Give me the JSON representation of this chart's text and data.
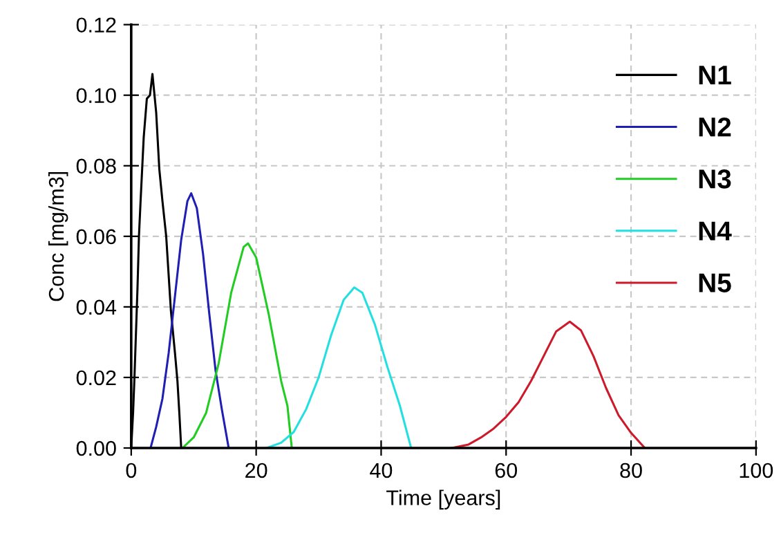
{
  "chart_data": {
    "type": "line",
    "xlabel": "Time [years]",
    "ylabel": "Conc [mg/m3]",
    "xlim": [
      0,
      100
    ],
    "xticks": [
      0,
      20,
      40,
      60,
      80,
      100
    ],
    "ylim": [
      0,
      0.12
    ],
    "yticks": [
      {
        "value": 0,
        "label": "0.00"
      },
      {
        "value": 0.02,
        "label": "0.02"
      },
      {
        "value": 0.04,
        "label": "0.04"
      },
      {
        "value": 0.06,
        "label": "0.06"
      },
      {
        "value": 0.08,
        "label": "0.08"
      },
      {
        "value": 0.1,
        "label": "0.10"
      },
      {
        "value": 0.12,
        "label": "0.12"
      }
    ],
    "grid": true,
    "legend": "right",
    "line_style": "solid",
    "marker": "none",
    "series": [
      {
        "name": "N1",
        "color": "#000000",
        "x": [
          0,
          0.3,
          0.5,
          1,
          1.24,
          1.5,
          1.75,
          2,
          2.5,
          3,
          3.4,
          4,
          4.5,
          5,
          5.6,
          6.35,
          7,
          7.4,
          7.7,
          8
        ],
        "values": [
          0,
          0.01,
          0.019,
          0.045,
          0.06,
          0.07,
          0.079,
          0.088,
          0.099,
          0.1,
          0.106,
          0.095,
          0.079,
          0.07,
          0.06,
          0.039,
          0.027,
          0.019,
          0.01,
          0
        ]
      },
      {
        "name": "N2",
        "color": "#1f1fb4",
        "x": [
          3.1,
          4,
          5,
          6,
          7,
          8,
          9,
          9.6,
          10.5,
          11.5,
          12.5,
          13.5,
          14.5,
          15.6
        ],
        "values": [
          0,
          0.006,
          0.014,
          0.027,
          0.043,
          0.059,
          0.07,
          0.0722,
          0.068,
          0.055,
          0.038,
          0.022,
          0.011,
          0
        ]
      },
      {
        "name": "N3",
        "color": "#22cc22",
        "x": [
          8.2,
          10,
          12,
          14,
          16,
          18,
          18.7,
          20,
          22,
          24,
          25,
          25.7
        ],
        "values": [
          0,
          0.003,
          0.01,
          0.024,
          0.044,
          0.057,
          0.058,
          0.054,
          0.038,
          0.019,
          0.012,
          0
        ]
      },
      {
        "name": "N4",
        "color": "#22e0e0",
        "x": [
          21.7,
          24,
          26,
          28,
          30,
          32,
          34,
          35.7,
          37,
          39,
          41,
          43,
          44.8
        ],
        "values": [
          0,
          0.0015,
          0.0045,
          0.011,
          0.02,
          0.032,
          0.042,
          0.0455,
          0.044,
          0.035,
          0.023,
          0.012,
          0
        ]
      },
      {
        "name": "N5",
        "color": "#cc1a2a",
        "x": [
          51.3,
          54,
          56,
          58,
          60,
          62,
          64,
          66,
          68,
          70.2,
          72,
          74,
          76,
          78,
          80,
          82.2
        ],
        "values": [
          0,
          0.001,
          0.003,
          0.0055,
          0.0088,
          0.013,
          0.019,
          0.026,
          0.033,
          0.0358,
          0.0333,
          0.026,
          0.017,
          0.0093,
          0.0043,
          0
        ]
      }
    ]
  }
}
